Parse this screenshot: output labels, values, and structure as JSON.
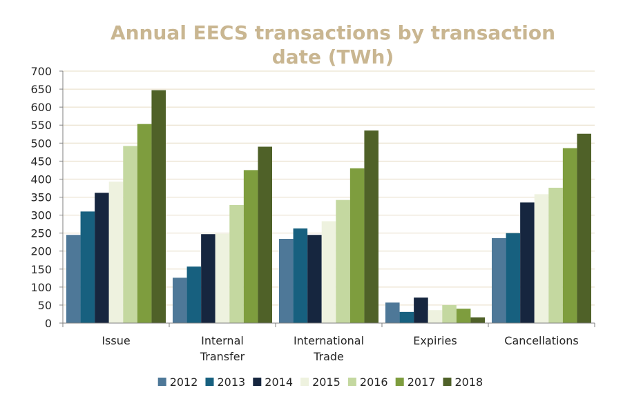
{
  "chart_data": {
    "type": "bar",
    "title_lines": [
      "Annual EECS transactions by transaction",
      "date (TWh)"
    ],
    "categories": [
      [
        "Issue"
      ],
      [
        "Internal",
        "Transfer"
      ],
      [
        "International",
        "Trade"
      ],
      [
        "Expiries"
      ],
      [
        "Cancellations"
      ]
    ],
    "series": [
      {
        "name": "2012",
        "color": "#4e7898",
        "values": [
          245,
          126,
          234,
          57,
          236
        ]
      },
      {
        "name": "2013",
        "color": "#17607f",
        "values": [
          310,
          157,
          263,
          31,
          250
        ]
      },
      {
        "name": "2014",
        "color": "#16263f",
        "values": [
          362,
          247,
          245,
          71,
          335
        ]
      },
      {
        "name": "2015",
        "color": "#eef2df",
        "values": [
          393,
          248,
          283,
          36,
          358
        ]
      },
      {
        "name": "2016",
        "color": "#c4d8a0",
        "values": [
          492,
          328,
          342,
          50,
          376
        ]
      },
      {
        "name": "2017",
        "color": "#7e9d3e",
        "values": [
          553,
          425,
          430,
          40,
          486
        ]
      },
      {
        "name": "2018",
        "color": "#4f6128",
        "values": [
          647,
          490,
          535,
          16,
          526
        ]
      }
    ],
    "yticks": [
      "0",
      "50",
      "100",
      "150",
      "200",
      "250",
      "300",
      "350",
      "400",
      "450",
      "500",
      "550",
      "600",
      "650",
      "700"
    ],
    "ylim": [
      0,
      700
    ],
    "grid": true,
    "legend_position": "bottom"
  }
}
